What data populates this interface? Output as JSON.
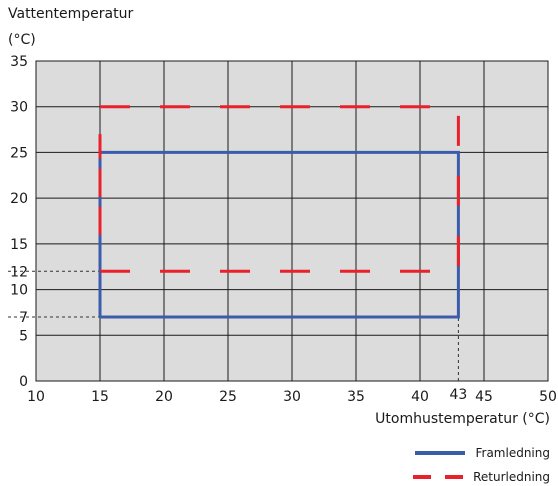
{
  "chart_data": {
    "type": "line",
    "ylabel_line1": "Vattentemperatur",
    "ylabel_line2": "(°C)",
    "xlabel": "Utomhustemperatur (°C)",
    "xlim": [
      10,
      50
    ],
    "ylim": [
      0,
      35
    ],
    "x_ticks": [
      10,
      15,
      20,
      25,
      30,
      35,
      40,
      45,
      50
    ],
    "y_ticks": [
      0,
      5,
      10,
      15,
      20,
      25,
      30,
      35
    ],
    "extra_x_ticks": [
      43
    ],
    "extra_y_ticks": [
      7,
      12
    ],
    "grid": true,
    "background": "#dcdcdc",
    "series": [
      {
        "name": "Framledning",
        "style": "solid",
        "color": "#3b5bab",
        "x": [
          15,
          15,
          43,
          43,
          15
        ],
        "y": [
          7,
          25,
          25,
          7,
          7
        ]
      },
      {
        "name": "Returledning",
        "style": "dashed",
        "color": "#e8212b",
        "segments": [
          {
            "x": [
              15,
              15
            ],
            "y": [
              16,
              27
            ]
          },
          {
            "x": [
              15,
              43
            ],
            "y": [
              30,
              30
            ]
          },
          {
            "x": [
              43,
              43
            ],
            "y": [
              29,
              12
            ]
          },
          {
            "x": [
              15,
              43
            ],
            "y": [
              12,
              12
            ]
          }
        ]
      }
    ],
    "reference_lines": [
      {
        "orientation": "horizontal",
        "value": 12,
        "from_x": 10,
        "to_x": 15
      },
      {
        "orientation": "horizontal",
        "value": 7,
        "from_x": 10,
        "to_x": 15
      },
      {
        "orientation": "vertical",
        "value": 43,
        "from_y": 0,
        "to_y": 7
      }
    ],
    "legend": [
      "Framledning",
      "Returledning"
    ],
    "legend_position": "bottom-right"
  }
}
